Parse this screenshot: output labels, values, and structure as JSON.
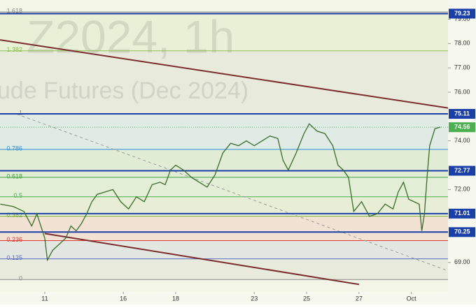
{
  "chart_data": {
    "type": "line",
    "watermark": [
      "Z2024, 1h",
      "ude Futures (Dec 2024)"
    ],
    "xlim": [
      -1.71,
      15.4
    ],
    "xticks": [
      {
        "value": 0,
        "label": "11"
      },
      {
        "value": 3,
        "label": "16"
      },
      {
        "value": 5,
        "label": "18"
      },
      {
        "value": 8,
        "label": "23"
      },
      {
        "value": 10,
        "label": "25"
      },
      {
        "value": 12,
        "label": "27"
      },
      {
        "value": 14,
        "label": "Oct"
      }
    ],
    "ylim": [
      67.79,
      79.79
    ],
    "yticks": [
      {
        "value": 69,
        "label": "69.00"
      },
      {
        "value": 72,
        "label": "72.00"
      },
      {
        "value": 74,
        "label": "74.00"
      },
      {
        "value": 76,
        "label": "76.00"
      },
      {
        "value": 77,
        "label": "77.00"
      },
      {
        "value": 78,
        "label": "78.00"
      },
      {
        "value": 79,
        "label": "79.00"
      }
    ],
    "series": [
      {
        "color": "#3b6b2e",
        "x": [
          -1.7,
          -1.2,
          -0.8,
          -0.5,
          -0.3,
          0,
          0.1,
          0.3,
          0.6,
          0.8,
          1.0,
          1.2,
          1.4,
          1.6,
          1.8,
          2.0,
          2.3,
          2.6,
          2.9,
          3.2,
          3.5,
          3.8,
          4.1,
          4.4,
          4.6,
          4.8,
          5.0,
          5.3,
          5.6,
          5.9,
          6.2,
          6.5,
          6.8,
          7.1,
          7.4,
          7.7,
          8.0,
          8.3,
          8.6,
          8.9,
          9.1,
          9.3,
          9.6,
          9.9,
          10.1,
          10.4,
          10.7,
          11.0,
          11.2,
          11.4,
          11.6,
          11.8,
          12.1,
          12.4,
          12.7,
          13.0,
          13.3,
          13.5,
          13.7,
          13.9,
          14.1,
          14.3,
          14.4,
          14.5,
          14.6,
          14.7,
          14.9,
          15.1
        ],
        "values": [
          71.4,
          71.3,
          71.1,
          70.5,
          71.0,
          70.0,
          69.1,
          69.5,
          69.8,
          70.0,
          70.5,
          70.3,
          70.6,
          71.0,
          71.5,
          71.8,
          71.9,
          72.0,
          71.5,
          71.2,
          71.7,
          71.5,
          72.2,
          72.3,
          72.2,
          72.8,
          73.0,
          72.8,
          72.5,
          72.3,
          72.1,
          72.6,
          73.5,
          73.9,
          73.8,
          74.0,
          73.8,
          74.0,
          74.2,
          74.1,
          73.2,
          72.8,
          73.5,
          74.3,
          74.7,
          74.4,
          74.3,
          73.8,
          73.0,
          72.8,
          72.5,
          71.1,
          71.5,
          70.9,
          71.0,
          71.4,
          71.2,
          71.9,
          72.3,
          71.6,
          71.5,
          71.4,
          70.3,
          71.0,
          72.5,
          73.8,
          74.5,
          74.56
        ]
      }
    ],
    "fib_levels": [
      {
        "ratio": 1.618,
        "price": 79.3,
        "color": "#8a8a8a"
      },
      {
        "ratio": 1.382,
        "price": 77.7,
        "color": "#8bc34a"
      },
      {
        "ratio": 1,
        "price": 75.11,
        "color": "#8a8a8a"
      },
      {
        "ratio": 0.786,
        "price": 73.65,
        "color": "#2f8fd8"
      },
      {
        "ratio": 0.618,
        "price": 72.5,
        "color": "#43a047"
      },
      {
        "ratio": 0.5,
        "price": 71.7,
        "color": "#4caf50"
      },
      {
        "ratio": 0.382,
        "price": 70.9,
        "color": "#7cb342"
      },
      {
        "ratio": 0.236,
        "price": 69.9,
        "color": "#e53935"
      },
      {
        "ratio": 0.125,
        "price": 69.15,
        "color": "#5c6bc0"
      },
      {
        "ratio": 0,
        "price": 68.3,
        "color": "#8a8a8a"
      }
    ],
    "price_lines": [
      79.23,
      75.11,
      72.77,
      71.01,
      70.25
    ],
    "price_line_color": "#1a3fa8",
    "last_price": 74.56,
    "last_price_color": "#4caf50",
    "trendlines": [
      {
        "color": "#7b2d2d",
        "style": "solid",
        "x": [
          -1.71,
          15.4
        ],
        "values": [
          78.15,
          75.35
        ]
      },
      {
        "color": "#7b2d2d",
        "style": "solid",
        "x": [
          0,
          12.0
        ],
        "values": [
          70.19,
          68.1
        ]
      },
      {
        "color": "#9a9a9a",
        "style": "dashed",
        "x": [
          -1.07,
          15.4
        ],
        "values": [
          75.1,
          68.66
        ]
      }
    ]
  }
}
